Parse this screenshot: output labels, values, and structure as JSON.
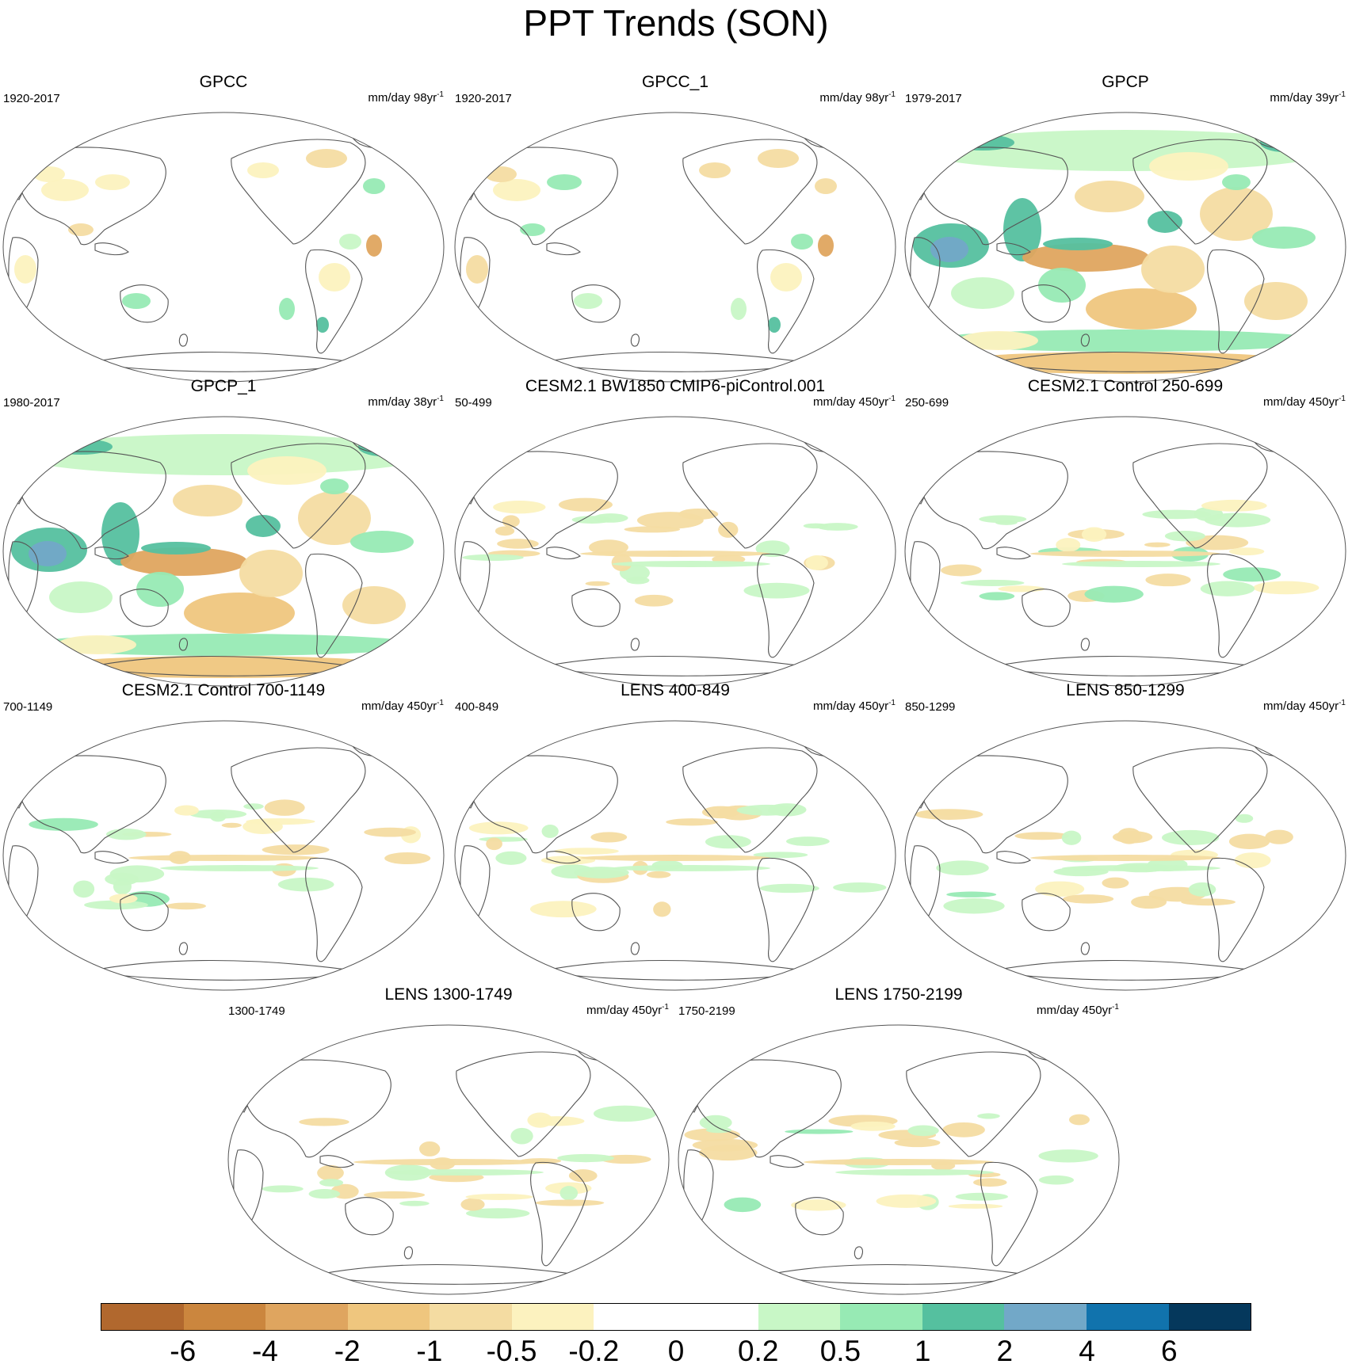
{
  "title": "PPT Trends (SON)",
  "colorbar": {
    "colors": [
      "#b1682e",
      "#cb863e",
      "#dfa55f",
      "#efc67e",
      "#f4dca2",
      "#fcf2bf",
      "#ffffff",
      "#ffffff",
      "#c8f7c6",
      "#97eab4",
      "#55c09f",
      "#72a8c8",
      "#1173ad",
      "#05385c"
    ],
    "labels": [
      "-6",
      "-4",
      "-2",
      "-1",
      "-0.5",
      "-0.2",
      "0",
      "0.2",
      "0.5",
      "1",
      "2",
      "4",
      "6"
    ]
  },
  "panels": [
    {
      "title": "GPCC",
      "period": "1920-2017",
      "units": "mm/day 98yr",
      "units_sup": "-1",
      "style": "obs-land"
    },
    {
      "title": "GPCC_1",
      "period": "1920-2017",
      "units": "mm/day 98yr",
      "units_sup": "-1",
      "style": "obs-land"
    },
    {
      "title": "GPCP",
      "period": "1979-2017",
      "units": "mm/day 39yr",
      "units_sup": "-1",
      "style": "obs-full"
    },
    {
      "title": "GPCP_1",
      "period": "1980-2017",
      "units": "mm/day 38yr",
      "units_sup": "-1",
      "style": "obs-full"
    },
    {
      "title": "CESM2.1 BW1850 CMIP6-piControl.001",
      "period": "50-499",
      "units": "mm/day 450yr",
      "units_sup": "-1",
      "style": "model"
    },
    {
      "title": "CESM2.1 Control 250-699",
      "period": "250-699",
      "units": "mm/day 450yr",
      "units_sup": "-1",
      "style": "model"
    },
    {
      "title": "CESM2.1 Control 700-1149",
      "period": "700-1149",
      "units": "mm/day 450yr",
      "units_sup": "-1",
      "style": "model"
    },
    {
      "title": "LENS 400-849",
      "period": "400-849",
      "units": "mm/day 450yr",
      "units_sup": "-1",
      "style": "model"
    },
    {
      "title": "LENS 850-1299",
      "period": "850-1299",
      "units": "mm/day 450yr",
      "units_sup": "-1",
      "style": "model"
    },
    {
      "title": "LENS 1300-1749",
      "period": "1300-1749",
      "units": "mm/day 450yr",
      "units_sup": "-1",
      "style": "model"
    },
    {
      "title": "LENS 1750-2199",
      "period": "1750-2199",
      "units": "mm/day 450yr",
      "units_sup": "-1",
      "style": "model"
    }
  ]
}
